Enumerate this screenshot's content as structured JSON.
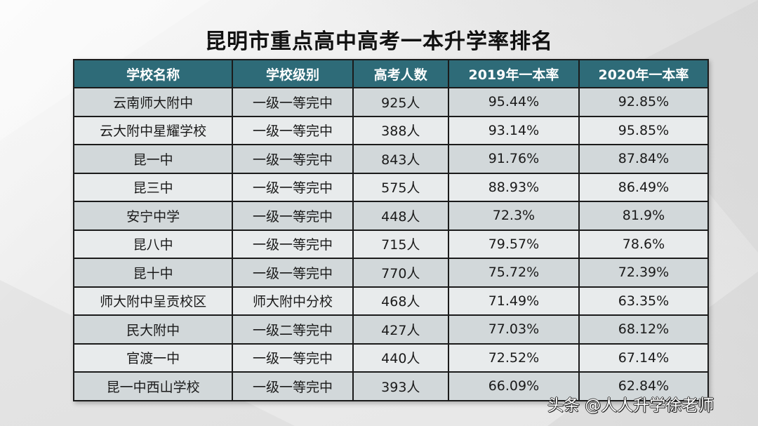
{
  "title": "昆明市重点高中高考一本升学率排名",
  "table": {
    "headers": [
      "学校名称",
      "学校级别",
      "高考人数",
      "2019年一本率",
      "2020年一本率"
    ],
    "rows": [
      [
        "云南师大附中",
        "一级一等完中",
        "925人",
        "95.44%",
        "92.85%"
      ],
      [
        "云大附中星耀学校",
        "一级一等完中",
        "388人",
        "93.14%",
        "95.85%"
      ],
      [
        "昆一中",
        "一级一等完中",
        "843人",
        "91.76%",
        "87.84%"
      ],
      [
        "昆三中",
        "一级一等完中",
        "575人",
        "88.93%",
        "86.49%"
      ],
      [
        "安宁中学",
        "一级一等完中",
        "448人",
        "72.3%",
        "81.9%"
      ],
      [
        "昆八中",
        "一级一等完中",
        "715人",
        "79.57%",
        "78.6%"
      ],
      [
        "昆十中",
        "一级一等完中",
        "770人",
        "75.72%",
        "72.39%"
      ],
      [
        "师大附中呈贡校区",
        "师大附中分校",
        "468人",
        "71.49%",
        "63.35%"
      ],
      [
        "民大附中",
        "一级二等完中",
        "427人",
        "77.03%",
        "68.12%"
      ],
      [
        "官渡一中",
        "一级一等完中",
        "440人",
        "72.52%",
        "67.14%"
      ],
      [
        "昆一中西山学校",
        "一级一等完中",
        "393人",
        "66.09%",
        "62.84%"
      ]
    ]
  },
  "watermark": "头条 @人人升学徐老师",
  "colors": {
    "header_bg": "#2e6b78",
    "header_text": "#ffffff",
    "row_dark": "#d2d8da",
    "row_light": "#e8ebec",
    "border": "#1b1b1b"
  }
}
